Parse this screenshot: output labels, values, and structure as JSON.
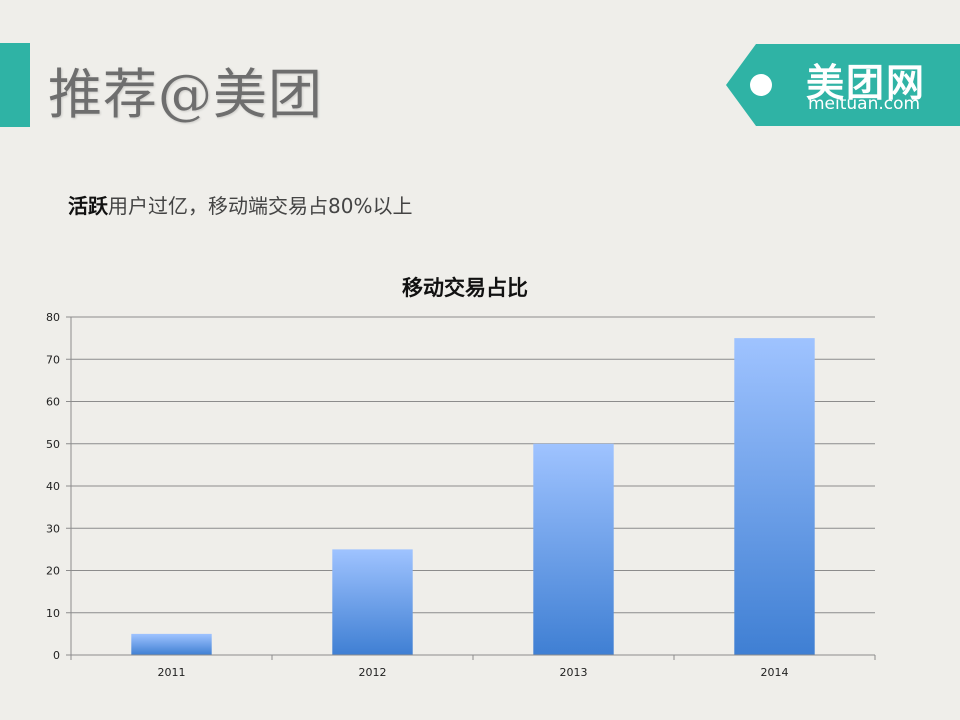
{
  "header": {
    "title": "推荐@美团"
  },
  "brand": {
    "name": "美团网",
    "domain": "meituan.com",
    "color": "#2fb3a5"
  },
  "subtitle": {
    "strong": "活跃",
    "rest": "用户过亿，移动端交易占80%以上"
  },
  "chart_data": {
    "type": "bar",
    "title": "移动交易占比",
    "categories": [
      "2011",
      "2012",
      "2013",
      "2014"
    ],
    "values": [
      5,
      25,
      50,
      75
    ],
    "ylim": [
      0,
      80
    ],
    "yticks": [
      0,
      10,
      20,
      30,
      40,
      50,
      60,
      70,
      80
    ],
    "grid": true,
    "legend": "none",
    "bar_color_top": "#9fc3ff",
    "bar_color_bottom": "#3f7fd3"
  }
}
